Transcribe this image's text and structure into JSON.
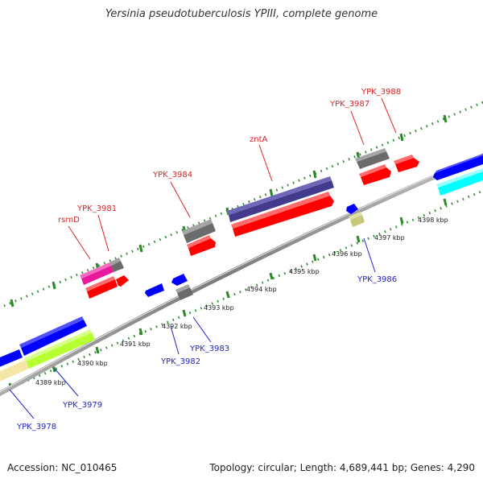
{
  "title": "Yersinia pseudotuberculosis YPIII, complete genome",
  "footer": {
    "accession": "Accession: NC_010465",
    "summary": "Topology: circular; Length: 4,689,441 bp; Genes: 4,290"
  },
  "colors": {
    "backbone": "#8a8a8a",
    "tick": "#2a8a2a",
    "forward_label": "#dd2222",
    "reverse_label": "#2222cc"
  },
  "kbp_labels": [
    "4389 kbp",
    "4390 kbp",
    "4391 kbp",
    "4392 kbp",
    "4393 kbp",
    "4394 kbp",
    "4395 kbp",
    "4396 kbp",
    "4397 kbp",
    "4398 kbp"
  ],
  "gene_labels": {
    "forward": [
      "rsmD",
      "YPK_3981",
      "YPK_3984",
      "zntA",
      "YPK_3987",
      "YPK_3988"
    ],
    "reverse": [
      "YPK_3978",
      "YPK_3979",
      "YPK_3982",
      "YPK_3983",
      "YPK_3986"
    ]
  },
  "feature_colors": [
    "#e8199c",
    "#ff0000",
    "#7f7f7f",
    "#423b8c",
    "#0000ff",
    "#00ffff",
    "#b7ff33",
    "#f5e6a6",
    "#c8c87a"
  ]
}
